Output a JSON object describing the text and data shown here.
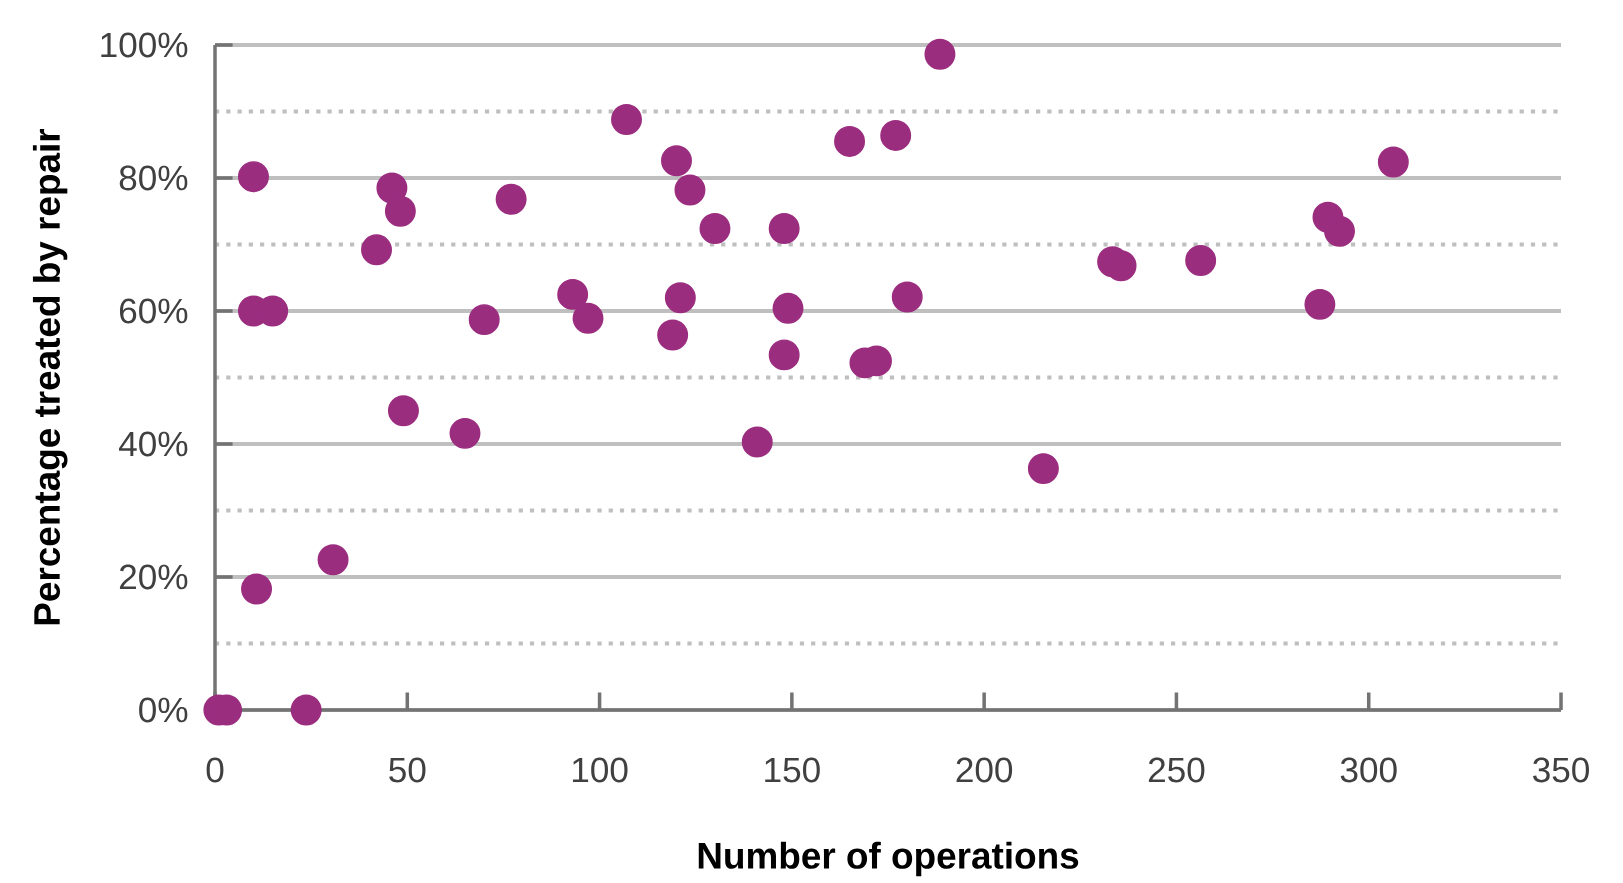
{
  "chart_data": {
    "type": "scatter",
    "xlabel": "Number of operations",
    "ylabel": "Percentage treated by repair",
    "x": [
      1,
      3,
      10,
      10,
      15,
      10.8,
      23.7,
      30.7,
      42,
      46,
      48.2,
      49,
      65,
      70,
      77,
      93,
      97,
      107,
      119,
      120,
      121,
      123.5,
      130,
      141,
      148,
      148,
      149,
      165,
      169,
      172,
      177,
      180,
      188.5,
      215.4,
      233.4,
      235.6,
      256.3,
      287.3,
      289.4,
      292.4,
      306.4
    ],
    "series": [
      {
        "color": "#9b2d7f",
        "values": [
          0,
          0,
          80.2,
          60,
          60,
          18.2,
          0,
          22.6,
          69.2,
          78.5,
          75,
          45,
          41.6,
          58.7,
          76.8,
          62.5,
          58.9,
          88.8,
          56.4,
          82.6,
          62,
          78.2,
          72.4,
          40.3,
          72.4,
          53.4,
          60.4,
          85.5,
          52.2,
          52.5,
          86.4,
          62.1,
          98.6,
          36.3,
          67.4,
          66.8,
          67.6,
          61,
          74.1,
          72,
          82.4
        ]
      }
    ],
    "xlim": [
      0,
      350
    ],
    "xticks": [
      0,
      50,
      100,
      150,
      200,
      250,
      300,
      350
    ],
    "ylim": [
      0,
      100
    ],
    "yticks": [
      {
        "value": 0,
        "label": "0%"
      },
      {
        "value": 20,
        "label": "20%"
      },
      {
        "value": 40,
        "label": "40%"
      },
      {
        "value": 60,
        "label": "60%"
      },
      {
        "value": 80,
        "label": "80%"
      },
      {
        "value": 100,
        "label": "100%"
      }
    ],
    "grid": "y",
    "marker": "circle"
  }
}
